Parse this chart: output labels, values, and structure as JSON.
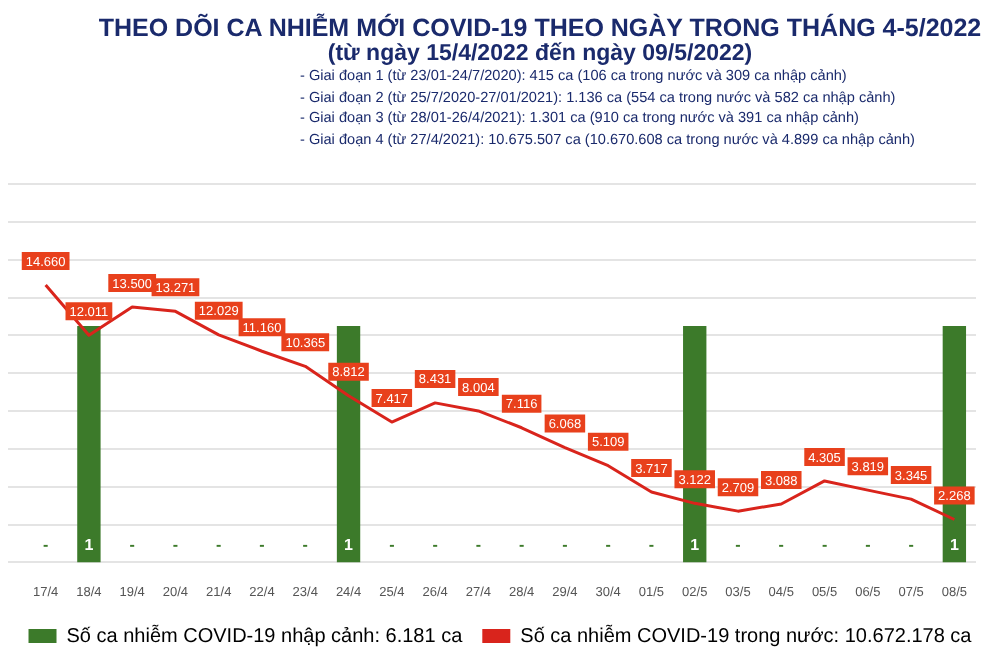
{
  "chart_data": {
    "type": "bar",
    "title": "THEO DÕI CA NHIỄM MỚI COVID-19 THEO NGÀY TRONG THÁNG 4-5/2022",
    "subtitle": "(từ ngày 15/4/2022 đến ngày 09/5/2022)",
    "annotations": [
      "- Giai đoạn 1 (từ 23/01-24/7/2020): 415 ca (106 ca trong nước và 309 ca nhập cảnh)",
      "- Giai đoạn 2 (từ 25/7/2020-27/01/2021): 1.136 ca (554 ca trong nước và 582 ca nhập cảnh)",
      "- Giai đoạn 3 (từ 28/01-26/4/2021): 1.301 ca (910 ca trong nước và 391 ca nhập cảnh)",
      "- Giai đoạn 4 (từ 27/4/2021): 10.675.507 ca (10.670.608 ca trong nước và 4.899 ca nhập cảnh)"
    ],
    "categories": [
      "17/4",
      "18/4",
      "19/4",
      "20/4",
      "21/4",
      "22/4",
      "23/4",
      "24/4",
      "25/4",
      "26/4",
      "27/4",
      "28/4",
      "29/4",
      "30/4",
      "01/5",
      "02/5",
      "03/5",
      "04/5",
      "05/5",
      "06/5",
      "07/5",
      "08/5"
    ],
    "series": [
      {
        "name": "Số ca nhiễm COVID-19 nhập cảnh: 6.181 ca",
        "axis": "y2",
        "color": "#3c7a2a",
        "values": [
          null,
          1,
          null,
          null,
          null,
          null,
          null,
          1,
          null,
          null,
          null,
          null,
          null,
          null,
          null,
          1,
          null,
          null,
          null,
          null,
          null,
          1
        ],
        "value_labels": [
          "-",
          "1",
          "-",
          "-",
          "-",
          "-",
          "-",
          "1",
          "-",
          "-",
          "-",
          "-",
          "-",
          "-",
          "-",
          "1",
          "-",
          "-",
          "-",
          "-",
          "-",
          "1"
        ]
      },
      {
        "name": "Số ca nhiễm COVID-19 trong nước: 10.672.178 ca",
        "type": "line",
        "color": "#d9241c",
        "values": [
          14660,
          12011,
          13500,
          13271,
          12029,
          11160,
          10365,
          8812,
          7417,
          8431,
          8004,
          7116,
          6068,
          5109,
          3717,
          3122,
          2709,
          3088,
          4305,
          3819,
          3345,
          2268
        ],
        "value_labels": [
          "14.660",
          "12.011",
          "13.500",
          "13.271",
          "12.029",
          "11.160",
          "10.365",
          "8.812",
          "7.417",
          "8.431",
          "8.004",
          "7.116",
          "6.068",
          "5.109",
          "3.717",
          "3.122",
          "2.709",
          "3.088",
          "4.305",
          "3.819",
          "3.345",
          "2.268"
        ]
      }
    ],
    "ylim": [
      0,
      20000
    ],
    "yticks": [
      0,
      2000,
      4000,
      6000,
      8000,
      10000,
      12000,
      14000,
      16000,
      18000,
      20000
    ],
    "grid": "y",
    "legend": "bottom",
    "tick_labels": "x",
    "marker": "none",
    "line_style": "solid"
  }
}
